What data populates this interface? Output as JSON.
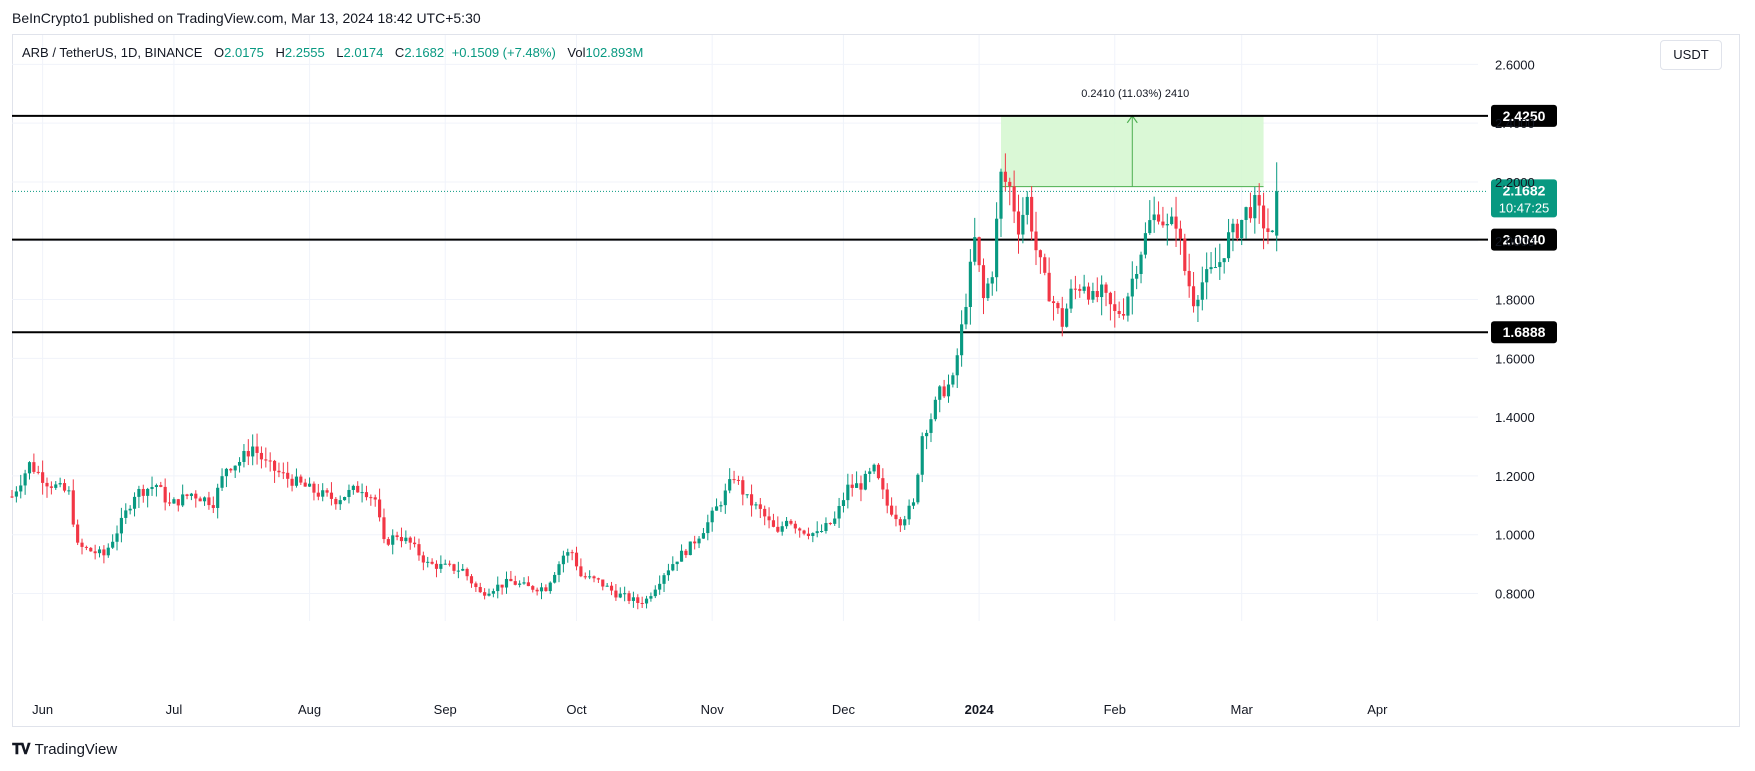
{
  "publish_caption": "BeInCrypto1 published on TradingView.com, Mar 13, 2024 18:42 UTC+5:30",
  "legend": {
    "symbol": "ARB / TetherUS, 1D, BINANCE",
    "open_label": "O",
    "open": "2.0175",
    "high_label": "H",
    "high": "2.2555",
    "low_label": "L",
    "low": "2.0174",
    "close_label": "C",
    "close": "2.1682",
    "change": "+0.1509 (+7.48%)",
    "vol_label": "Vol",
    "vol": "102.893M"
  },
  "currency_button": "USDT",
  "footer": {
    "brand": "TradingView",
    "icon": "tradingview-logo-icon"
  },
  "colors": {
    "up": "#089981",
    "down": "#f23645",
    "range_fill": "#d4f7cf",
    "range_line": "#4caf50",
    "level_line": "#000000"
  },
  "chart_data": {
    "type": "candlestick",
    "symbol": "ARB / TetherUS",
    "interval": "1D",
    "ylim": [
      0.72,
      2.7
    ],
    "y_ticks": [
      0.8,
      1.0,
      1.2,
      1.4,
      1.6,
      1.8,
      2.0,
      2.2,
      2.4,
      2.6
    ],
    "y_tick_labels": [
      "0.8000",
      "1.0000",
      "1.2000",
      "1.4000",
      "1.6000",
      "1.8000",
      "2.0000",
      "2.2000",
      "2.4000",
      "2.6000"
    ],
    "x_tick_labels": [
      "Jun",
      "Jul",
      "Aug",
      "Sep",
      "Oct",
      "Nov",
      "Dec",
      "2024",
      "Feb",
      "Mar",
      "Apr"
    ],
    "x_tick_days": [
      7,
      37,
      68,
      99,
      129,
      160,
      190,
      221,
      252,
      281,
      312
    ],
    "x_range_days": [
      0,
      335
    ],
    "bold_x_labels": [
      "2024"
    ],
    "grid": true,
    "horizontal_levels": [
      {
        "value": 2.425,
        "label": "2.4250"
      },
      {
        "value": 2.004,
        "label": "2.0040"
      },
      {
        "value": 1.6888,
        "label": "1.6888"
      }
    ],
    "current_price": {
      "value": 2.1682,
      "label": "2.1682",
      "countdown": "10:47:25"
    },
    "measure": {
      "label": "0.2410 (11.03%) 2410",
      "from_value": 2.184,
      "to_value": 2.425,
      "start_day": 226,
      "end_day": 286,
      "arrow_day": 256
    },
    "anchors": [
      [
        0,
        1.13
      ],
      [
        4,
        1.24
      ],
      [
        8,
        1.18
      ],
      [
        13,
        1.14
      ],
      [
        15,
        0.96
      ],
      [
        19,
        0.94
      ],
      [
        21,
        0.93
      ],
      [
        25,
        1.04
      ],
      [
        28,
        1.14
      ],
      [
        33,
        1.17
      ],
      [
        36,
        1.1
      ],
      [
        41,
        1.14
      ],
      [
        46,
        1.11
      ],
      [
        49,
        1.23
      ],
      [
        52,
        1.25
      ],
      [
        55,
        1.3
      ],
      [
        58,
        1.24
      ],
      [
        62,
        1.2
      ],
      [
        66,
        1.17
      ],
      [
        70,
        1.14
      ],
      [
        74,
        1.12
      ],
      [
        78,
        1.15
      ],
      [
        80,
        1.16
      ],
      [
        83,
        1.12
      ],
      [
        85,
        0.97
      ],
      [
        88,
        1.0
      ],
      [
        91,
        0.97
      ],
      [
        95,
        0.9
      ],
      [
        99,
        0.89
      ],
      [
        103,
        0.88
      ],
      [
        107,
        0.8
      ],
      [
        110,
        0.82
      ],
      [
        114,
        0.84
      ],
      [
        118,
        0.82
      ],
      [
        122,
        0.82
      ],
      [
        126,
        0.93
      ],
      [
        128,
        0.94
      ],
      [
        130,
        0.86
      ],
      [
        134,
        0.84
      ],
      [
        138,
        0.8
      ],
      [
        143,
        0.77
      ],
      [
        145,
        0.78
      ],
      [
        149,
        0.87
      ],
      [
        152,
        0.92
      ],
      [
        155,
        0.96
      ],
      [
        159,
        1.04
      ],
      [
        163,
        1.14
      ],
      [
        165,
        1.2
      ],
      [
        168,
        1.12
      ],
      [
        171,
        1.08
      ],
      [
        175,
        1.0
      ],
      [
        177,
        1.06
      ],
      [
        180,
        1.02
      ],
      [
        184,
        1.0
      ],
      [
        188,
        1.05
      ],
      [
        191,
        1.16
      ],
      [
        194,
        1.17
      ],
      [
        197,
        1.22
      ],
      [
        200,
        1.1
      ],
      [
        203,
        1.05
      ],
      [
        206,
        1.1
      ],
      [
        208,
        1.34
      ],
      [
        210,
        1.4
      ],
      [
        212,
        1.48
      ],
      [
        215,
        1.52
      ],
      [
        217,
        1.7
      ],
      [
        219,
        1.9
      ],
      [
        220,
        2.0
      ],
      [
        222,
        1.8
      ],
      [
        224,
        1.9
      ],
      [
        226,
        2.22
      ],
      [
        228,
        2.18
      ],
      [
        230,
        2.05
      ],
      [
        232,
        2.14
      ],
      [
        234,
        1.97
      ],
      [
        236,
        1.86
      ],
      [
        238,
        1.79
      ],
      [
        240,
        1.72
      ],
      [
        242,
        1.82
      ],
      [
        245,
        1.86
      ],
      [
        247,
        1.8
      ],
      [
        249,
        1.82
      ],
      [
        252,
        1.75
      ],
      [
        254,
        1.77
      ],
      [
        256,
        1.87
      ],
      [
        258,
        1.97
      ],
      [
        260,
        2.06
      ],
      [
        262,
        2.1
      ],
      [
        264,
        2.04
      ],
      [
        266,
        2.07
      ],
      [
        268,
        1.9
      ],
      [
        270,
        1.8
      ],
      [
        272,
        1.86
      ],
      [
        274,
        1.89
      ],
      [
        276,
        1.93
      ],
      [
        278,
        2.01
      ],
      [
        280,
        2.04
      ],
      [
        282,
        2.1
      ],
      [
        284,
        2.12
      ],
      [
        286,
        2.06
      ],
      [
        288,
        2.01
      ],
      [
        289,
        2.17
      ]
    ]
  }
}
